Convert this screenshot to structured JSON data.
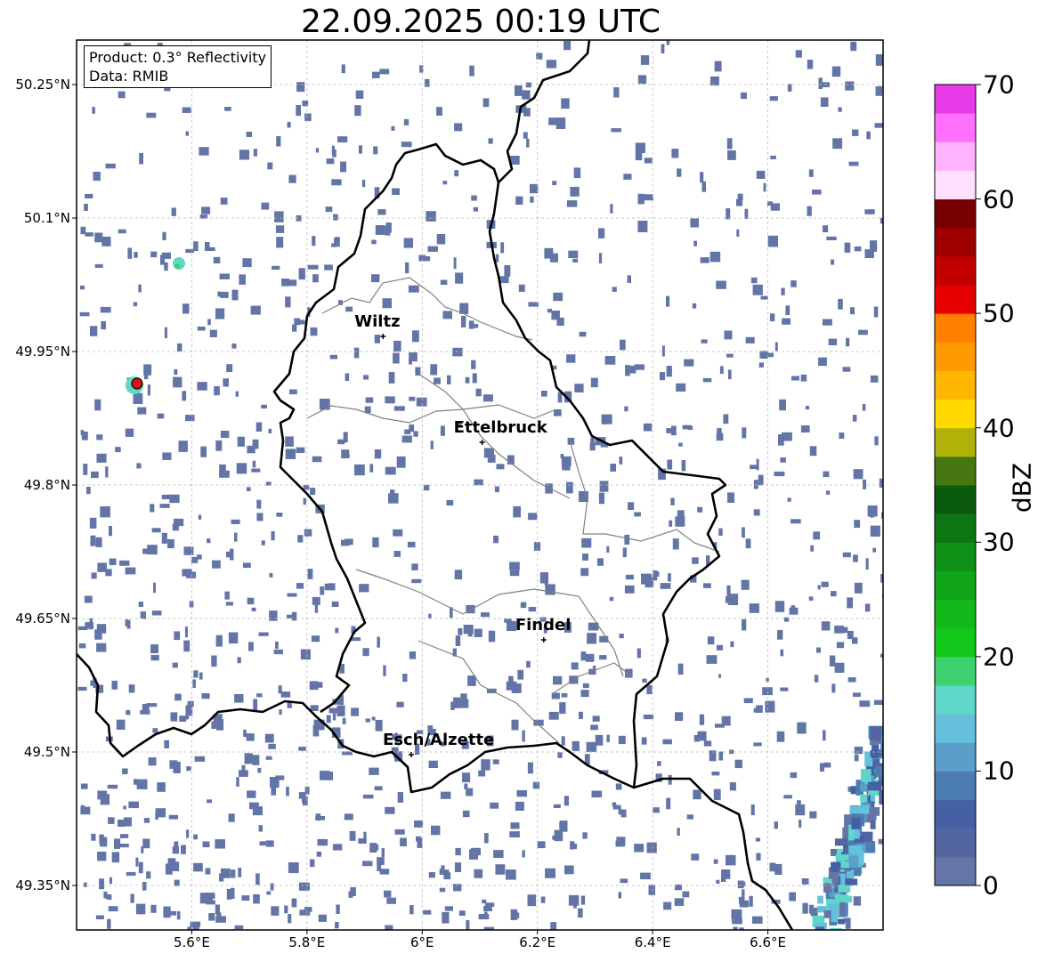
{
  "title": "22.09.2025 00:19 UTC",
  "info": {
    "product": "Product: 0.3° Reflectivity",
    "data": "Data: RMIB"
  },
  "map": {
    "lat_range": [
      49.3,
      50.3
    ],
    "lon_range": [
      5.4,
      6.8
    ],
    "lat_ticks": [
      "50.25°N",
      "50.1°N",
      "49.95°N",
      "49.8°N",
      "49.65°N",
      "49.5°N",
      "49.35°N"
    ],
    "lon_ticks": [
      "5.6°E",
      "5.8°E",
      "6°E",
      "6.2°E",
      "6.4°E",
      "6.6°E"
    ],
    "cities": [
      {
        "name": "Wiltz",
        "lat": 49.967,
        "lon": 5.932
      },
      {
        "name": "Ettelbruck",
        "lat": 49.848,
        "lon": 6.104
      },
      {
        "name": "Findel",
        "lat": 49.626,
        "lon": 6.211
      },
      {
        "name": "Esch/Alzette",
        "lat": 49.497,
        "lon": 5.981
      }
    ],
    "radar_site": {
      "lat": 49.914,
      "lon": 5.505
    },
    "border_color": "#000000",
    "district_color": "#808080",
    "echo_color": "#6275a6"
  },
  "colorbar": {
    "label": "dBZ",
    "ticks": [
      "0",
      "10",
      "20",
      "30",
      "40",
      "50",
      "60",
      "70"
    ],
    "colors": [
      "#6475a6",
      "#5466a0",
      "#4560a3",
      "#4c7db2",
      "#5b9ec9",
      "#64c0dc",
      "#5fd7c8",
      "#3ed16f",
      "#12c81a",
      "#13b81a",
      "#11a619",
      "#0f9016",
      "#0c7612",
      "#0a5b0e",
      "#467710",
      "#b0b209",
      "#ffd900",
      "#ffb600",
      "#ff9900",
      "#ff7f00",
      "#e60000",
      "#c20000",
      "#9e0000",
      "#780000",
      "#ffe0ff",
      "#ffb3ff",
      "#ff70ff",
      "#e83ce8"
    ]
  }
}
